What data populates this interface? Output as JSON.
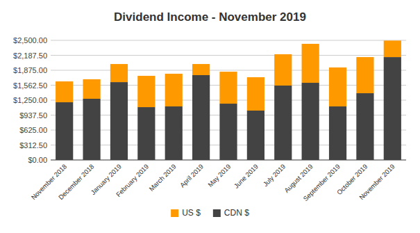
{
  "chart_data": {
    "type": "bar",
    "title": "Dividend Income - November 2019",
    "stacked": true,
    "grid": true,
    "legend": "bottom",
    "categories": [
      "November 2018",
      "December 2018",
      "January 2019",
      "February 2019",
      "March 2019",
      "April 2019",
      "May 2019",
      "June 2019",
      "July 2019",
      "August 2019",
      "September 2019",
      "October 2019",
      "November 2019"
    ],
    "series": [
      {
        "name": "CDN $",
        "color": "#434343",
        "values": [
          1206,
          1279,
          1627,
          1104,
          1119,
          1773,
          1177,
          1032,
          1555,
          1613,
          1119,
          1395,
          2150
        ]
      },
      {
        "name": "US $",
        "color": "#ff9900",
        "values": [
          436,
          407,
          378,
          654,
          683,
          232,
          668,
          697,
          654,
          814,
          814,
          755,
          345
        ]
      }
    ],
    "ylim": [
      0,
      2500
    ],
    "yticks": [
      {
        "value": 0,
        "label": "$0.00"
      },
      {
        "value": 312.5,
        "label": "$312.50"
      },
      {
        "value": 625,
        "label": "$625.00"
      },
      {
        "value": 937.5,
        "label": "$937.50"
      },
      {
        "value": 1250,
        "label": "$1,250.00"
      },
      {
        "value": 1562.5,
        "label": "$1,562.50"
      },
      {
        "value": 1875,
        "label": "$1,875.00"
      },
      {
        "value": 2187.5,
        "label": "$2,187.50"
      },
      {
        "value": 2500,
        "label": "$2,500.00"
      }
    ]
  }
}
